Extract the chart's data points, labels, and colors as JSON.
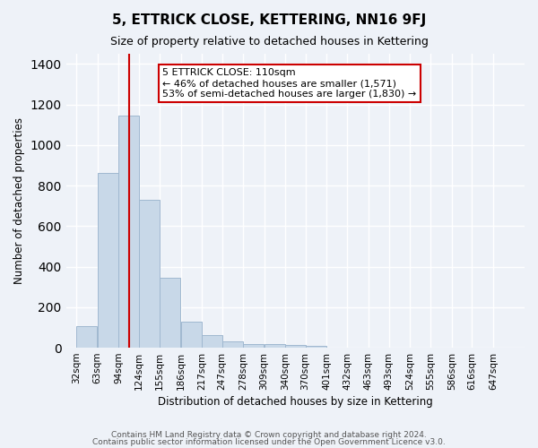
{
  "title": "5, ETTRICK CLOSE, KETTERING, NN16 9FJ",
  "subtitle": "Size of property relative to detached houses in Kettering",
  "xlabel": "Distribution of detached houses by size in Kettering",
  "ylabel": "Number of detached properties",
  "bar_color": "#c8d8e8",
  "bar_edge_color": "#a0b8d0",
  "background_color": "#eef2f8",
  "grid_color": "#ffffff",
  "vline_x": 110,
  "vline_color": "#cc0000",
  "annotation_text": "5 ETTRICK CLOSE: 110sqm\n← 46% of detached houses are smaller (1,571)\n53% of semi-detached houses are larger (1,830) →",
  "annotation_box_color": "#ffffff",
  "annotation_box_edge": "#cc0000",
  "categories": [
    "32sqm",
    "63sqm",
    "94sqm",
    "124sqm",
    "155sqm",
    "186sqm",
    "217sqm",
    "247sqm",
    "278sqm",
    "309sqm",
    "340sqm",
    "370sqm",
    "401sqm",
    "432sqm",
    "463sqm",
    "493sqm",
    "524sqm",
    "555sqm",
    "586sqm",
    "616sqm",
    "647sqm"
  ],
  "bin_edges": [
    32,
    63,
    94,
    124,
    155,
    186,
    217,
    247,
    278,
    309,
    340,
    370,
    401,
    432,
    463,
    493,
    524,
    555,
    586,
    616,
    647
  ],
  "values": [
    105,
    860,
    1145,
    730,
    345,
    130,
    60,
    30,
    17,
    17,
    15,
    10,
    0,
    0,
    0,
    0,
    0,
    0,
    0,
    0
  ],
  "ylim": [
    0,
    1450
  ],
  "yticks": [
    0,
    200,
    400,
    600,
    800,
    1000,
    1200,
    1400
  ],
  "footer_line1": "Contains HM Land Registry data © Crown copyright and database right 2024.",
  "footer_line2": "Contains public sector information licensed under the Open Government Licence v3.0."
}
